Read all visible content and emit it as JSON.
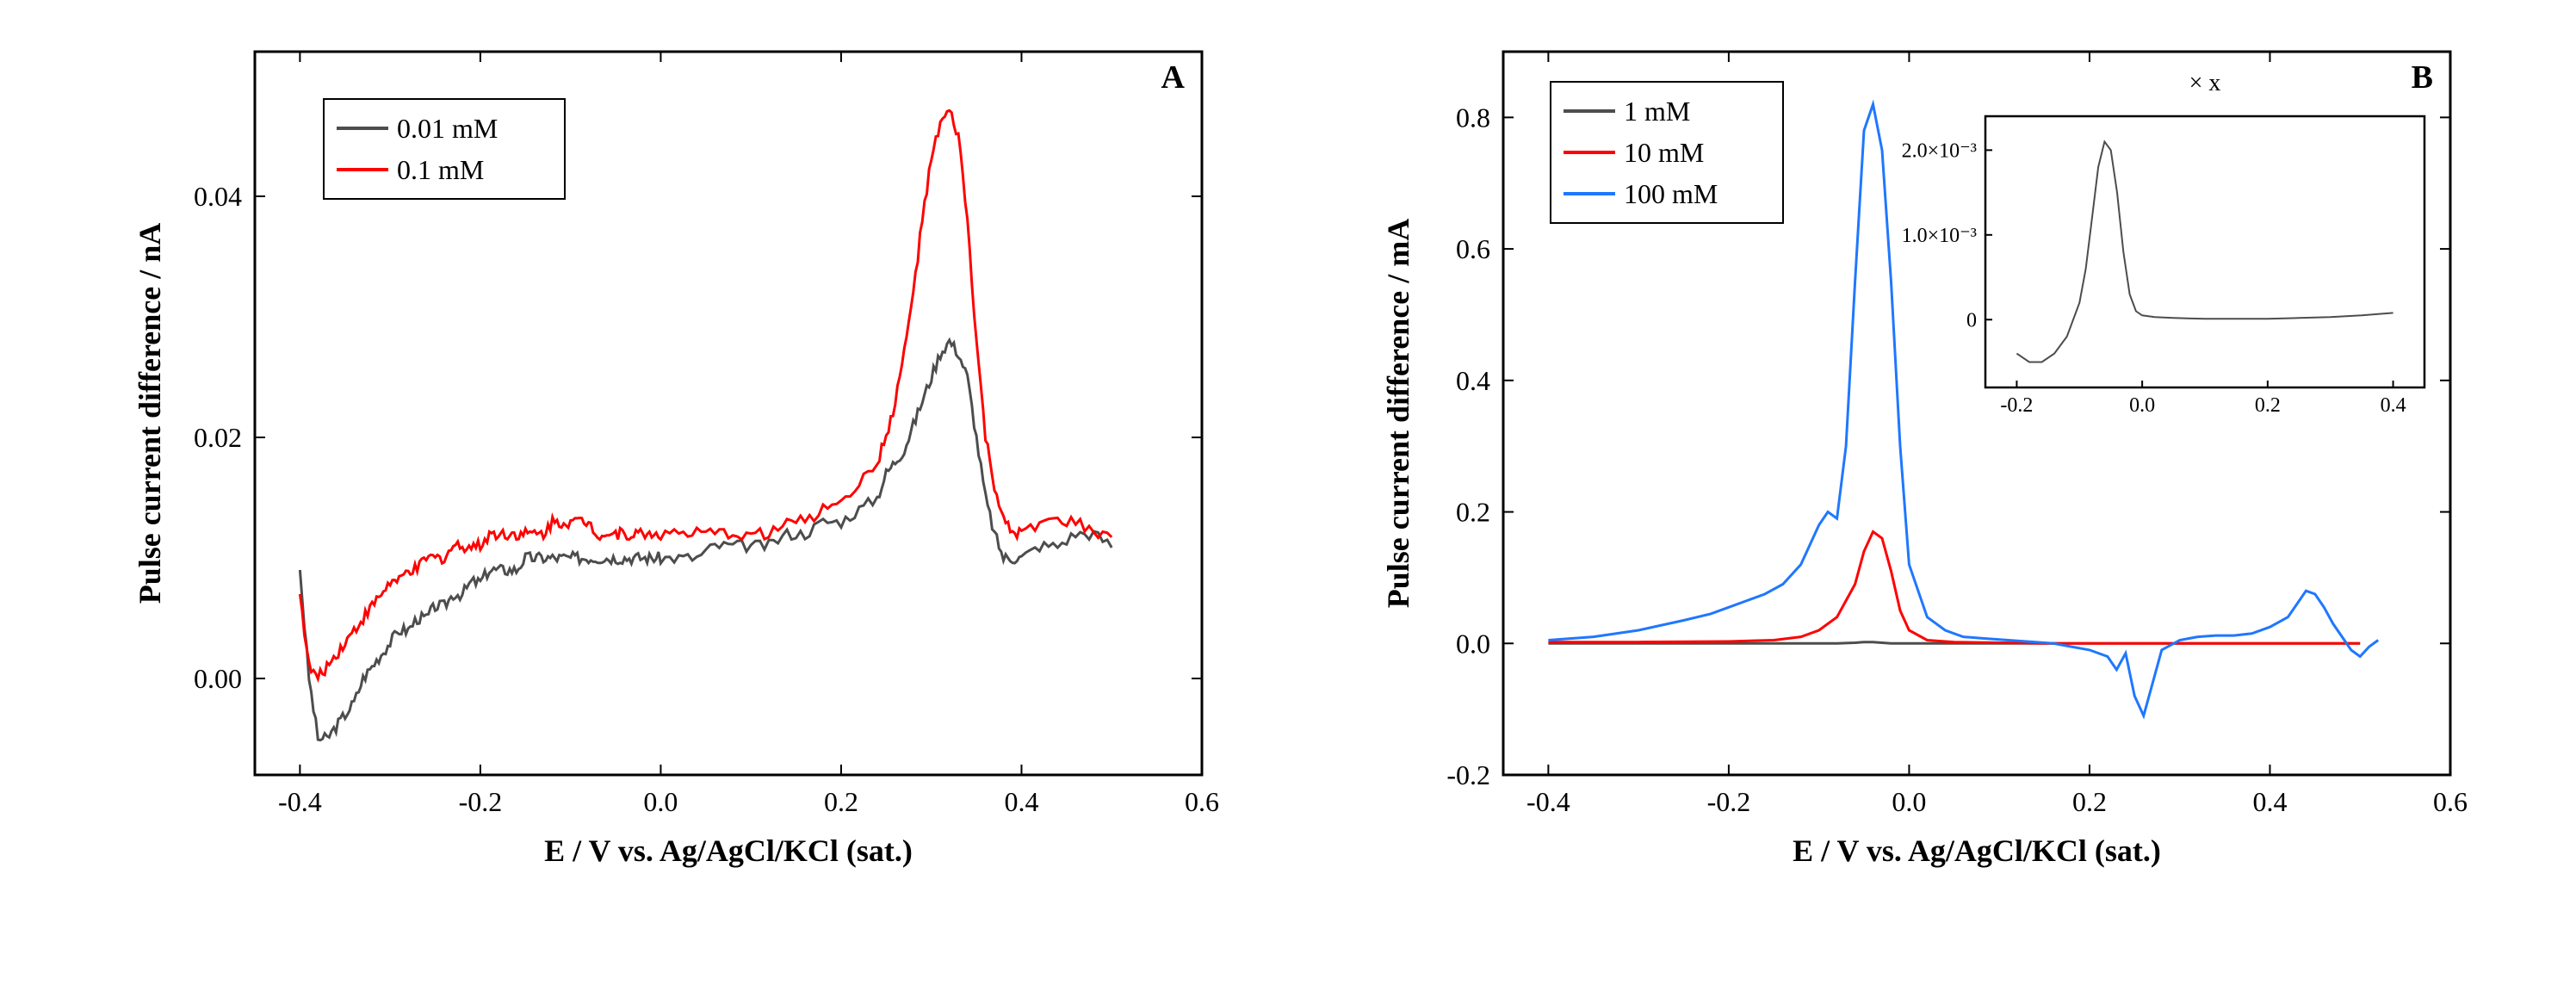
{
  "figure": {
    "background_color": "#ffffff",
    "panels": [
      "A",
      "B"
    ]
  },
  "panelA": {
    "letter": "A",
    "xlabel": "E / V vs. Ag/AgCl/KCl (sat.)",
    "ylabel": "Pulse current difference / nA",
    "xlim": [
      -0.45,
      0.6
    ],
    "ylim": [
      -0.008,
      0.052
    ],
    "xticks": [
      -0.4,
      -0.2,
      0.0,
      0.2,
      0.4,
      0.6
    ],
    "yticks": [
      0.0,
      0.02,
      0.04
    ],
    "xtick_labels": [
      "-0.4",
      "-0.2",
      "0.0",
      "0.2",
      "0.4",
      "0.6"
    ],
    "ytick_labels": [
      "0.00",
      "0.02",
      "0.04"
    ],
    "legend": {
      "items": [
        {
          "label": "0.01 mM",
          "color": "#4d4d4d"
        },
        {
          "label": "0.1 mM",
          "color": "#ff0000"
        }
      ]
    },
    "series": [
      {
        "name": "0.01 mM",
        "color": "#4d4d4d",
        "x": [
          -0.4,
          -0.39,
          -0.38,
          -0.37,
          -0.36,
          -0.35,
          -0.34,
          -0.33,
          -0.32,
          -0.31,
          -0.3,
          -0.29,
          -0.28,
          -0.27,
          -0.26,
          -0.25,
          -0.24,
          -0.23,
          -0.22,
          -0.21,
          -0.2,
          -0.19,
          -0.18,
          -0.17,
          -0.16,
          -0.15,
          -0.14,
          -0.13,
          -0.12,
          -0.11,
          -0.1,
          -0.09,
          -0.08,
          -0.07,
          -0.06,
          -0.05,
          -0.04,
          -0.03,
          -0.02,
          -0.01,
          0.0,
          0.02,
          0.04,
          0.06,
          0.08,
          0.1,
          0.12,
          0.14,
          0.16,
          0.18,
          0.2,
          0.22,
          0.24,
          0.25,
          0.26,
          0.27,
          0.28,
          0.29,
          0.3,
          0.31,
          0.32,
          0.33,
          0.34,
          0.35,
          0.36,
          0.37,
          0.38,
          0.39,
          0.4,
          0.42,
          0.44,
          0.46,
          0.48,
          0.5
        ],
        "y": [
          0.009,
          0.0,
          -0.005,
          -0.005,
          -0.004,
          -0.003,
          -0.002,
          0.0,
          0.001,
          0.002,
          0.003,
          0.004,
          0.004,
          0.005,
          0.005,
          0.006,
          0.006,
          0.007,
          0.007,
          0.008,
          0.008,
          0.009,
          0.009,
          0.009,
          0.009,
          0.01,
          0.01,
          0.01,
          0.01,
          0.01,
          0.01,
          0.01,
          0.01,
          0.01,
          0.01,
          0.01,
          0.01,
          0.01,
          0.01,
          0.01,
          0.01,
          0.01,
          0.01,
          0.011,
          0.011,
          0.011,
          0.011,
          0.012,
          0.012,
          0.013,
          0.013,
          0.014,
          0.015,
          0.017,
          0.018,
          0.019,
          0.021,
          0.023,
          0.025,
          0.027,
          0.028,
          0.027,
          0.025,
          0.02,
          0.015,
          0.012,
          0.01,
          0.01,
          0.01,
          0.011,
          0.011,
          0.012,
          0.012,
          0.011
        ]
      },
      {
        "name": "0.1 mM",
        "color": "#ff0000",
        "x": [
          -0.4,
          -0.39,
          -0.38,
          -0.37,
          -0.36,
          -0.35,
          -0.34,
          -0.33,
          -0.32,
          -0.31,
          -0.3,
          -0.29,
          -0.28,
          -0.27,
          -0.26,
          -0.25,
          -0.24,
          -0.23,
          -0.22,
          -0.21,
          -0.2,
          -0.19,
          -0.18,
          -0.17,
          -0.16,
          -0.15,
          -0.14,
          -0.13,
          -0.12,
          -0.11,
          -0.1,
          -0.09,
          -0.08,
          -0.07,
          -0.06,
          -0.05,
          -0.04,
          -0.03,
          -0.02,
          -0.01,
          0.0,
          0.02,
          0.04,
          0.06,
          0.08,
          0.1,
          0.12,
          0.14,
          0.16,
          0.18,
          0.2,
          0.22,
          0.24,
          0.25,
          0.26,
          0.27,
          0.28,
          0.29,
          0.3,
          0.31,
          0.32,
          0.33,
          0.34,
          0.35,
          0.36,
          0.37,
          0.38,
          0.39,
          0.4,
          0.42,
          0.44,
          0.46,
          0.48,
          0.5
        ],
        "y": [
          0.007,
          0.001,
          0.0,
          0.001,
          0.002,
          0.003,
          0.004,
          0.005,
          0.006,
          0.007,
          0.008,
          0.008,
          0.009,
          0.009,
          0.01,
          0.01,
          0.01,
          0.011,
          0.011,
          0.011,
          0.011,
          0.012,
          0.012,
          0.012,
          0.012,
          0.012,
          0.012,
          0.012,
          0.013,
          0.013,
          0.013,
          0.013,
          0.013,
          0.012,
          0.012,
          0.012,
          0.012,
          0.012,
          0.012,
          0.012,
          0.012,
          0.012,
          0.012,
          0.012,
          0.012,
          0.012,
          0.012,
          0.013,
          0.013,
          0.014,
          0.015,
          0.016,
          0.018,
          0.02,
          0.023,
          0.027,
          0.032,
          0.038,
          0.043,
          0.046,
          0.047,
          0.045,
          0.038,
          0.028,
          0.02,
          0.016,
          0.013,
          0.012,
          0.012,
          0.013,
          0.013,
          0.013,
          0.012,
          0.012
        ]
      }
    ]
  },
  "panelB": {
    "letter": "B",
    "xlabel": "E / V vs. Ag/AgCl/KCl (sat.)",
    "ylabel": "Pulse current difference / mA",
    "xlim": [
      -0.45,
      0.6
    ],
    "ylim": [
      -0.2,
      0.9
    ],
    "xticks": [
      -0.4,
      -0.2,
      0.0,
      0.2,
      0.4,
      0.6
    ],
    "yticks": [
      -0.2,
      0.0,
      0.2,
      0.4,
      0.6,
      0.8
    ],
    "xtick_labels": [
      "-0.4",
      "-0.2",
      "0.0",
      "0.2",
      "0.4",
      "0.6"
    ],
    "ytick_labels": [
      "-0.2",
      "0.0",
      "0.2",
      "0.4",
      "0.6",
      "0.8"
    ],
    "legend": {
      "items": [
        {
          "label": "1 mM",
          "color": "#4d4d4d"
        },
        {
          "label": "10 mM",
          "color": "#ff0000"
        },
        {
          "label": "100 mM",
          "color": "#1f77ff"
        }
      ]
    },
    "series": [
      {
        "name": "1 mM",
        "color": "#4d4d4d",
        "x": [
          -0.4,
          -0.3,
          -0.2,
          -0.15,
          -0.1,
          -0.08,
          -0.06,
          -0.05,
          -0.04,
          -0.03,
          -0.02,
          0.0,
          0.05,
          0.1,
          0.15,
          0.2,
          0.25,
          0.3,
          0.35,
          0.4,
          0.45,
          0.5
        ],
        "y": [
          0.0,
          0.0,
          0.0,
          0.0,
          0.0,
          0.0,
          0.001,
          0.002,
          0.002,
          0.001,
          0.0,
          0.0,
          0.0,
          0.0,
          0.0,
          0.0,
          0.0,
          0.0,
          0.0,
          0.0,
          0.0,
          0.0
        ]
      },
      {
        "name": "10 mM",
        "color": "#ff0000",
        "x": [
          -0.4,
          -0.3,
          -0.2,
          -0.15,
          -0.12,
          -0.1,
          -0.08,
          -0.06,
          -0.05,
          -0.04,
          -0.03,
          -0.02,
          -0.01,
          0.0,
          0.02,
          0.05,
          0.1,
          0.15,
          0.2,
          0.25,
          0.3,
          0.35,
          0.4,
          0.45,
          0.5
        ],
        "y": [
          0.002,
          0.002,
          0.003,
          0.005,
          0.01,
          0.02,
          0.04,
          0.09,
          0.14,
          0.17,
          0.16,
          0.11,
          0.05,
          0.02,
          0.005,
          0.002,
          0.001,
          0.0,
          0.0,
          0.0,
          0.0,
          0.0,
          0.0,
          0.0,
          0.0
        ]
      },
      {
        "name": "100 mM",
        "color": "#1f77ff",
        "x": [
          -0.4,
          -0.35,
          -0.3,
          -0.25,
          -0.22,
          -0.2,
          -0.18,
          -0.16,
          -0.14,
          -0.12,
          -0.1,
          -0.09,
          -0.08,
          -0.07,
          -0.06,
          -0.05,
          -0.04,
          -0.03,
          -0.02,
          -0.01,
          0.0,
          0.02,
          0.04,
          0.06,
          0.08,
          0.1,
          0.12,
          0.14,
          0.16,
          0.18,
          0.2,
          0.22,
          0.23,
          0.24,
          0.25,
          0.26,
          0.27,
          0.28,
          0.3,
          0.32,
          0.34,
          0.36,
          0.38,
          0.4,
          0.42,
          0.43,
          0.44,
          0.45,
          0.46,
          0.47,
          0.48,
          0.49,
          0.5,
          0.51,
          0.52
        ],
        "y": [
          0.005,
          0.01,
          0.02,
          0.035,
          0.045,
          0.055,
          0.065,
          0.075,
          0.09,
          0.12,
          0.18,
          0.2,
          0.19,
          0.3,
          0.55,
          0.78,
          0.82,
          0.75,
          0.55,
          0.3,
          0.12,
          0.04,
          0.02,
          0.01,
          0.008,
          0.006,
          0.004,
          0.002,
          0.0,
          -0.005,
          -0.01,
          -0.02,
          -0.04,
          -0.015,
          -0.08,
          -0.11,
          -0.06,
          -0.01,
          0.005,
          0.01,
          0.012,
          0.012,
          0.015,
          0.025,
          0.04,
          0.06,
          0.08,
          0.075,
          0.055,
          0.03,
          0.01,
          -0.01,
          -0.02,
          -0.005,
          0.005
        ]
      }
    ],
    "inset": {
      "title": "× x",
      "xlim": [
        -0.25,
        0.45
      ],
      "ylim": [
        -0.0008,
        0.0024
      ],
      "xticks": [
        -0.2,
        0.0,
        0.2,
        0.4
      ],
      "yticks": [
        0.0,
        0.001,
        0.002
      ],
      "xtick_labels": [
        "-0.2",
        "0.0",
        "0.2",
        "0.4"
      ],
      "ytick_labels": [
        "0",
        "1.0×10⁻³",
        "2.0×10⁻³"
      ],
      "series": {
        "color": "#4d4d4d",
        "x": [
          -0.2,
          -0.18,
          -0.16,
          -0.14,
          -0.12,
          -0.1,
          -0.09,
          -0.08,
          -0.07,
          -0.06,
          -0.05,
          -0.04,
          -0.03,
          -0.02,
          -0.01,
          0.0,
          0.02,
          0.05,
          0.1,
          0.15,
          0.2,
          0.25,
          0.3,
          0.35,
          0.4
        ],
        "y": [
          -0.0004,
          -0.0005,
          -0.0005,
          -0.0004,
          -0.0002,
          0.0002,
          0.0006,
          0.0012,
          0.0018,
          0.0021,
          0.002,
          0.0015,
          0.0008,
          0.0003,
          0.0001,
          5e-05,
          3e-05,
          2e-05,
          1e-05,
          1e-05,
          1e-05,
          2e-05,
          3e-05,
          5e-05,
          8e-05
        ]
      }
    }
  },
  "styling": {
    "axis_color": "#000000",
    "line_width": 3,
    "tick_length": 10,
    "font_family": "Georgia, serif",
    "label_fontsize": 36,
    "tick_fontsize": 32,
    "panel_letter_fontsize": 38
  }
}
